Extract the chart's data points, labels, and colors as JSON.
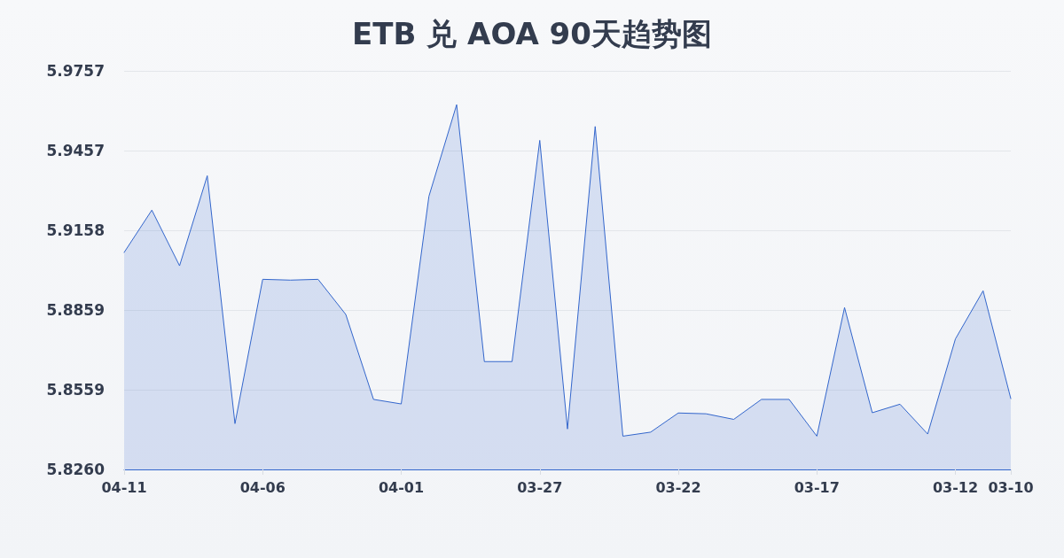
{
  "chart_data": {
    "type": "area",
    "title": "ETB 兑 AOA 90天趋势图",
    "categories": [
      "04-11",
      null,
      null,
      null,
      null,
      "04-06",
      null,
      null,
      null,
      null,
      "04-01",
      null,
      null,
      null,
      null,
      "03-27",
      null,
      null,
      null,
      null,
      "03-22",
      null,
      null,
      null,
      null,
      "03-17",
      null,
      null,
      null,
      null,
      "03-12",
      null,
      "03-10"
    ],
    "series": [
      {
        "color": "#3366cc",
        "values": [
          5.9075,
          5.9234,
          5.9025,
          5.9363,
          5.8432,
          5.8974,
          5.8971,
          5.8974,
          5.8842,
          5.8523,
          5.8506,
          5.9286,
          5.963,
          5.8665,
          5.8665,
          5.9496,
          5.8412,
          5.9548,
          5.8385,
          5.84,
          5.8472,
          5.8469,
          5.8448,
          5.8523,
          5.8523,
          5.8385,
          5.8868,
          5.8473,
          5.8505,
          5.8393,
          5.875,
          5.8931,
          5.8526
        ]
      }
    ],
    "ylim": [
      5.826,
      5.9757
    ],
    "yticks": [
      {
        "value": 5.826,
        "label": "5.8260"
      },
      5.8559,
      5.8859,
      5.9158,
      5.9457,
      5.9757
    ],
    "grid": "y",
    "marker": "none"
  }
}
